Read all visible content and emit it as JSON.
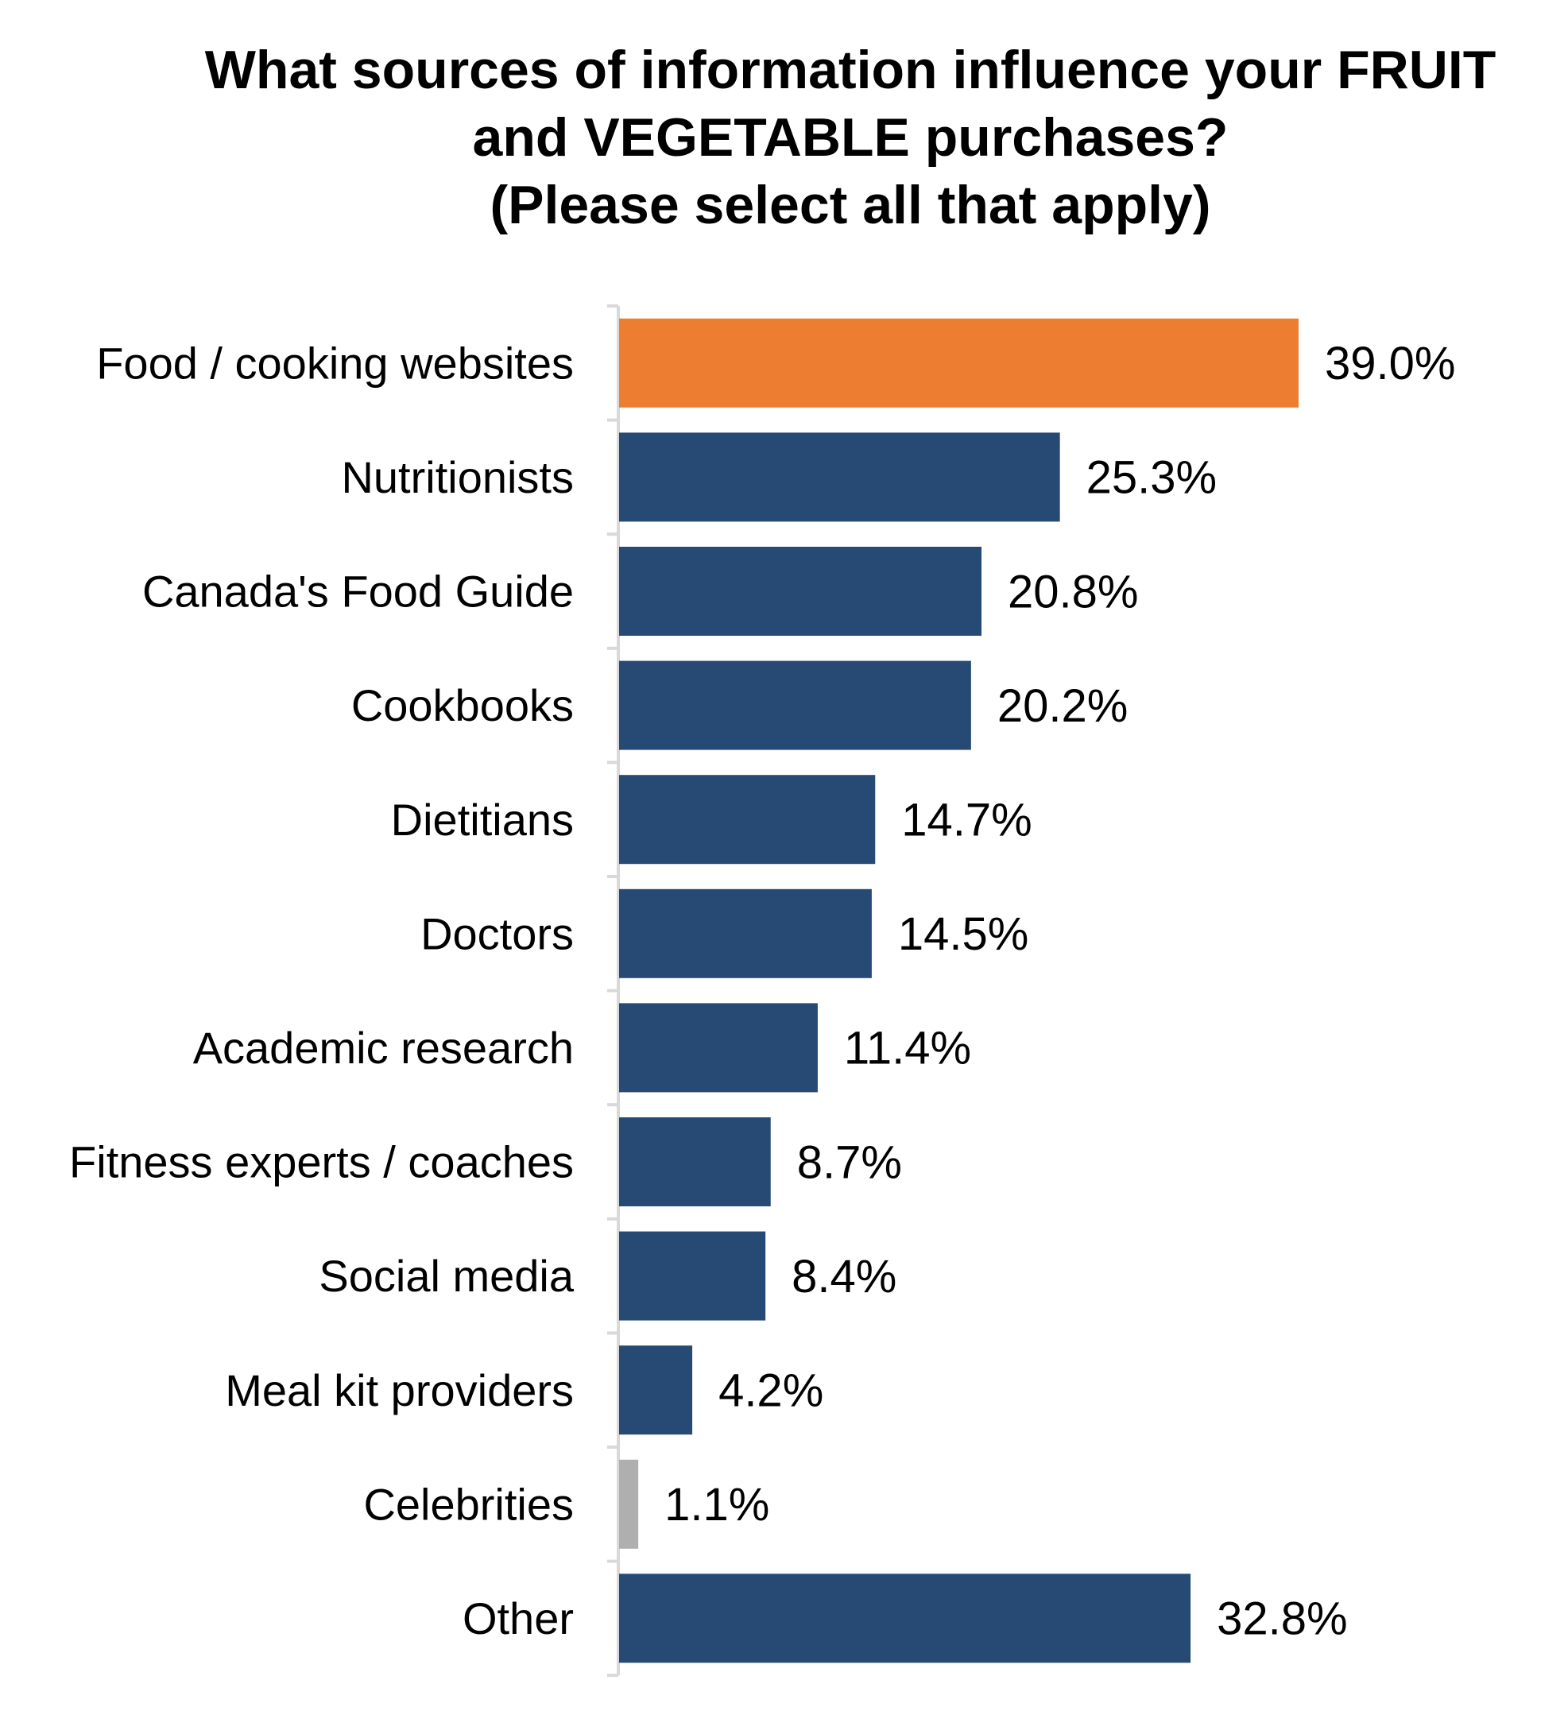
{
  "chart_data": {
    "type": "bar",
    "orientation": "horizontal",
    "title_lines": [
      "What sources of information influence your FRUIT",
      "and VEGETABLE purchases?",
      "(Please select all that apply)"
    ],
    "categories": [
      "Food / cooking websites",
      "Nutritionists",
      "Canada's Food Guide",
      "Cookbooks",
      "Dietitians",
      "Doctors",
      "Academic research",
      "Fitness experts / coaches",
      "Social media",
      "Meal kit providers",
      "Celebrities",
      "Other"
    ],
    "values": [
      39.0,
      25.3,
      20.8,
      20.2,
      14.7,
      14.5,
      11.4,
      8.7,
      8.4,
      4.2,
      1.1,
      32.8
    ],
    "value_labels": [
      "39.0%",
      "25.3%",
      "20.8%",
      "20.2%",
      "14.7%",
      "14.5%",
      "11.4%",
      "8.7%",
      "8.4%",
      "4.2%",
      "1.1%",
      "32.8%"
    ],
    "bar_colors": [
      "#ED7D31",
      "#264A74",
      "#264A74",
      "#264A74",
      "#264A74",
      "#264A74",
      "#264A74",
      "#264A74",
      "#264A74",
      "#264A74",
      "#AFAFAF",
      "#264A74"
    ],
    "xlim": [
      0,
      39.0
    ],
    "grid": false,
    "legend": "none"
  }
}
